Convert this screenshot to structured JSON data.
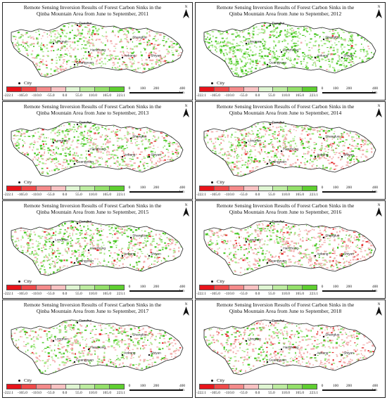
{
  "title_line1": "Remote Sensing Inversion Results of Forest Carbon Sinks in the",
  "title_line2_prefix": "Qinba Mountain Area from June to September,",
  "years": [
    "2011",
    "2012",
    "2013",
    "2014",
    "2015",
    "2016",
    "2017",
    "2018"
  ],
  "panels": [
    {
      "title1": "Remote Sensing Inversion Results of Forest Carbon Sinks in the",
      "title2": "Qinba Mountain Area from June to September, 2011",
      "greenness": 0.45,
      "redness": 0.3
    },
    {
      "title1": "Remote Sensing Inversion Results of Forest Carbon Sinks in the",
      "title2": "Qinba Mountain Area from June to September, 2012",
      "greenness": 0.9,
      "redness": 0.05
    },
    {
      "title1": "Remote Sensing Inversion Results of Forest Carbon Sinks in the",
      "title2": "Qinba Mountain Area from June to September, 2013",
      "greenness": 0.45,
      "redness": 0.3
    },
    {
      "title1": "Remote Sensing Inversion Results of Forest Carbon Sinks in the",
      "title2": "Qinba Mountain Area from June to September, 2014",
      "greenness": 0.4,
      "redness": 0.4
    },
    {
      "title1": "Remote Sensing Inversion Results of Forest Carbon Sinks in the",
      "title2": "Qinba Mountain Area from June to September, 2015",
      "greenness": 0.55,
      "redness": 0.25
    },
    {
      "title1": "Remote Sensing Inversion Results of Forest Carbon Sinks in the",
      "title2": "Qinba Mountain Area from June to September, 2016",
      "greenness": 0.3,
      "redness": 0.45
    },
    {
      "title1": "Remote Sensing Inversion Results of Forest Carbon Sinks in the",
      "title2": "Qinba Mountain Area from June to September, 2017",
      "greenness": 0.4,
      "redness": 0.3
    },
    {
      "title1": "Remote Sensing Inversion Results of Forest Carbon Sinks in the",
      "title2": "Qinba Mountain Area from June to September, 2018",
      "greenness": 0.3,
      "redness": 0.45
    }
  ],
  "cities": [
    "Tianshui",
    "Longnan",
    "Hanzhong",
    "Shangluo",
    "Ankang",
    "Shiyan",
    "Guangyuan"
  ],
  "legend": {
    "breaks": [
      "-222.1",
      "-165.0",
      "-110.0",
      "-55.0",
      "0.0",
      "55.0",
      "110.0",
      "165.0",
      "223.1"
    ],
    "colors": [
      "#e8141b",
      "#f04a4a",
      "#f48a8a",
      "#f8c2c2",
      "#dff5d2",
      "#bdeca0",
      "#94e06a",
      "#5fcf30"
    ]
  },
  "city_key_label": "City",
  "north_label": "N",
  "scale": {
    "labels": [
      "0",
      "100",
      "200",
      "400"
    ],
    "unit": "km"
  },
  "colors": {
    "green_strong": "#4cc828",
    "green_light": "#a8e889",
    "red_light": "#f3b0b0",
    "red_strong": "#e53030"
  }
}
